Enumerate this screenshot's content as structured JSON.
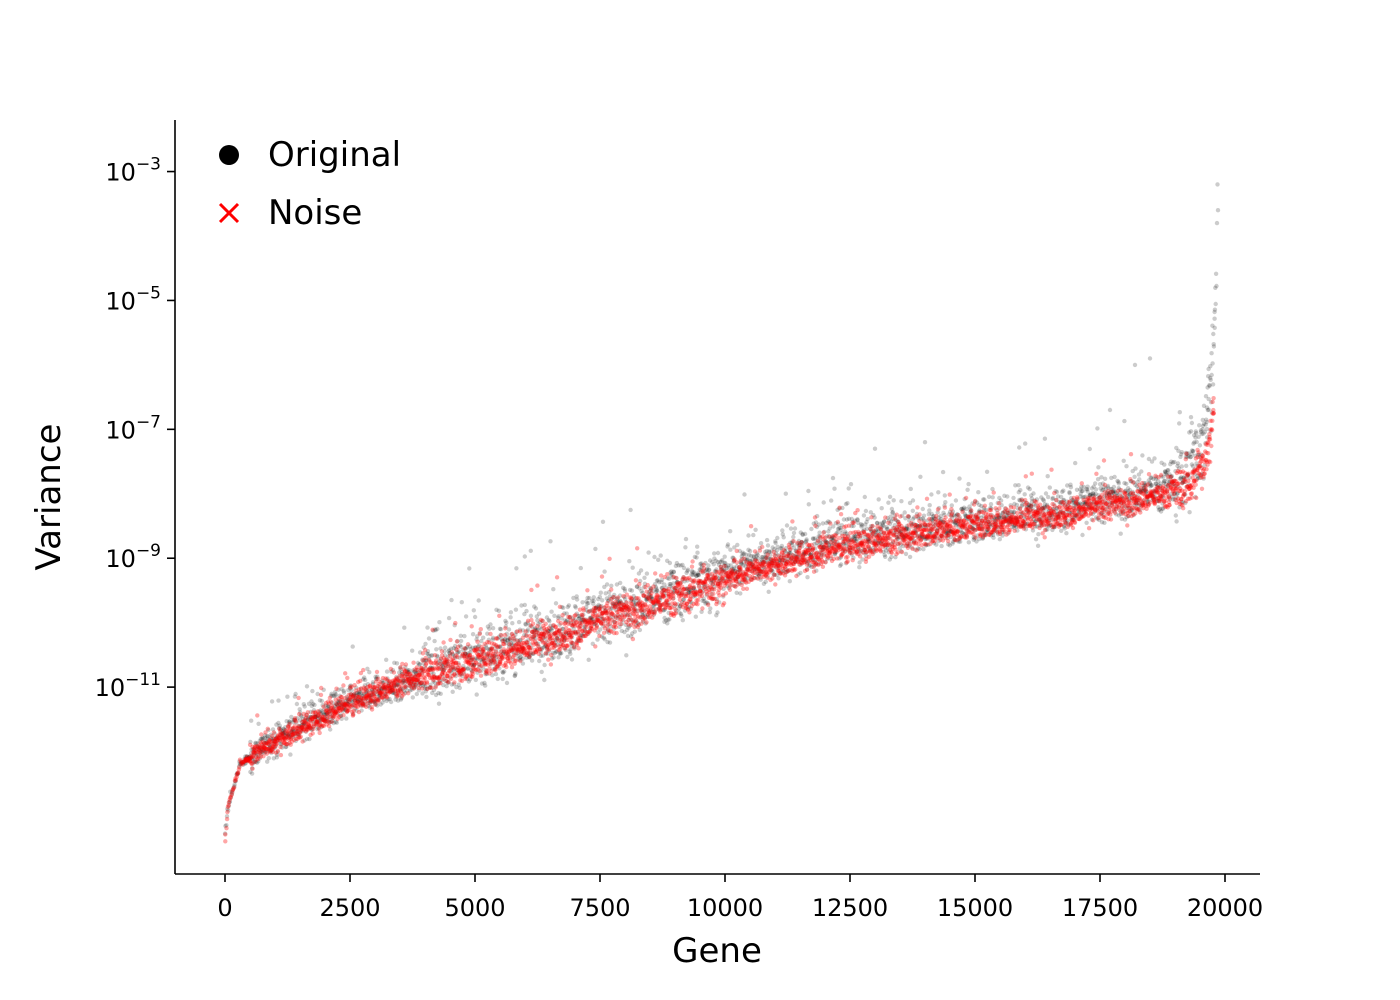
{
  "chart_data": {
    "type": "scatter",
    "title": "",
    "xlabel": "Gene",
    "ylabel": "Variance",
    "xlim": [
      -1000,
      20700
    ],
    "ylim_log10": [
      -13.9,
      -2.2
    ],
    "y_scale": "log",
    "grid": false,
    "legend": {
      "position": "top-left",
      "entries": [
        {
          "label": "Original",
          "marker": "circle",
          "color": "#000000"
        },
        {
          "label": "Noise",
          "marker": "x",
          "color": "#ff0000"
        }
      ]
    },
    "x_ticks": [
      {
        "value": 0,
        "label": "0"
      },
      {
        "value": 2500,
        "label": "2500"
      },
      {
        "value": 5000,
        "label": "5000"
      },
      {
        "value": 7500,
        "label": "7500"
      },
      {
        "value": 10000,
        "label": "10000"
      },
      {
        "value": 12500,
        "label": "12500"
      },
      {
        "value": 15000,
        "label": "15000"
      },
      {
        "value": 17500,
        "label": "17500"
      },
      {
        "value": 20000,
        "label": "20000"
      }
    ],
    "y_ticks": [
      {
        "exponent": -3,
        "base": "10",
        "power": "−3"
      },
      {
        "exponent": -5,
        "base": "10",
        "power": "−5"
      },
      {
        "exponent": -7,
        "base": "10",
        "power": "−7"
      },
      {
        "exponent": -9,
        "base": "10",
        "power": "−9"
      },
      {
        "exponent": -11,
        "base": "10",
        "power": "−11"
      }
    ],
    "series": [
      {
        "name": "Original",
        "color": "#000000",
        "trend_log10": [
          [
            0,
            -13.3
          ],
          [
            50,
            -12.9
          ],
          [
            300,
            -12.2
          ],
          [
            1000,
            -11.8
          ],
          [
            2000,
            -11.4
          ],
          [
            3000,
            -11.1
          ],
          [
            4000,
            -10.8
          ],
          [
            5000,
            -10.55
          ],
          [
            6000,
            -10.3
          ],
          [
            7000,
            -10.05
          ],
          [
            8000,
            -9.8
          ],
          [
            9000,
            -9.5
          ],
          [
            10000,
            -9.25
          ],
          [
            11000,
            -9.0
          ],
          [
            12000,
            -8.8
          ],
          [
            13000,
            -8.65
          ],
          [
            14000,
            -8.55
          ],
          [
            15000,
            -8.42
          ],
          [
            16000,
            -8.3
          ],
          [
            17000,
            -8.2
          ],
          [
            18000,
            -8.05
          ],
          [
            18800,
            -7.9
          ],
          [
            19300,
            -7.6
          ],
          [
            19550,
            -7.2
          ],
          [
            19700,
            -6.4
          ],
          [
            19780,
            -5.6
          ],
          [
            19830,
            -4.8
          ]
        ],
        "outliers_log10": [
          [
            19850,
            -3.2
          ],
          [
            19860,
            -3.6
          ],
          [
            19840,
            -3.8
          ],
          [
            18200,
            -6.0
          ],
          [
            18500,
            -5.9
          ],
          [
            17700,
            -6.7
          ],
          [
            14000,
            -7.2
          ],
          [
            13000,
            -7.3
          ]
        ]
      },
      {
        "name": "Noise",
        "color": "#ff0000",
        "trend_log10": [
          [
            0,
            -13.4
          ],
          [
            50,
            -12.9
          ],
          [
            300,
            -12.2
          ],
          [
            1000,
            -11.85
          ],
          [
            2000,
            -11.45
          ],
          [
            3000,
            -11.1
          ],
          [
            4000,
            -10.8
          ],
          [
            5000,
            -10.6
          ],
          [
            6000,
            -10.35
          ],
          [
            7000,
            -10.1
          ],
          [
            8000,
            -9.85
          ],
          [
            9000,
            -9.6
          ],
          [
            10000,
            -9.35
          ],
          [
            11000,
            -9.1
          ],
          [
            12000,
            -8.9
          ],
          [
            13000,
            -8.75
          ],
          [
            14000,
            -8.6
          ],
          [
            15000,
            -8.48
          ],
          [
            16000,
            -8.38
          ],
          [
            17000,
            -8.28
          ],
          [
            18000,
            -8.15
          ],
          [
            18800,
            -8.0
          ],
          [
            19300,
            -7.85
          ],
          [
            19550,
            -7.6
          ],
          [
            19700,
            -7.2
          ],
          [
            19780,
            -6.5
          ]
        ]
      }
    ]
  }
}
